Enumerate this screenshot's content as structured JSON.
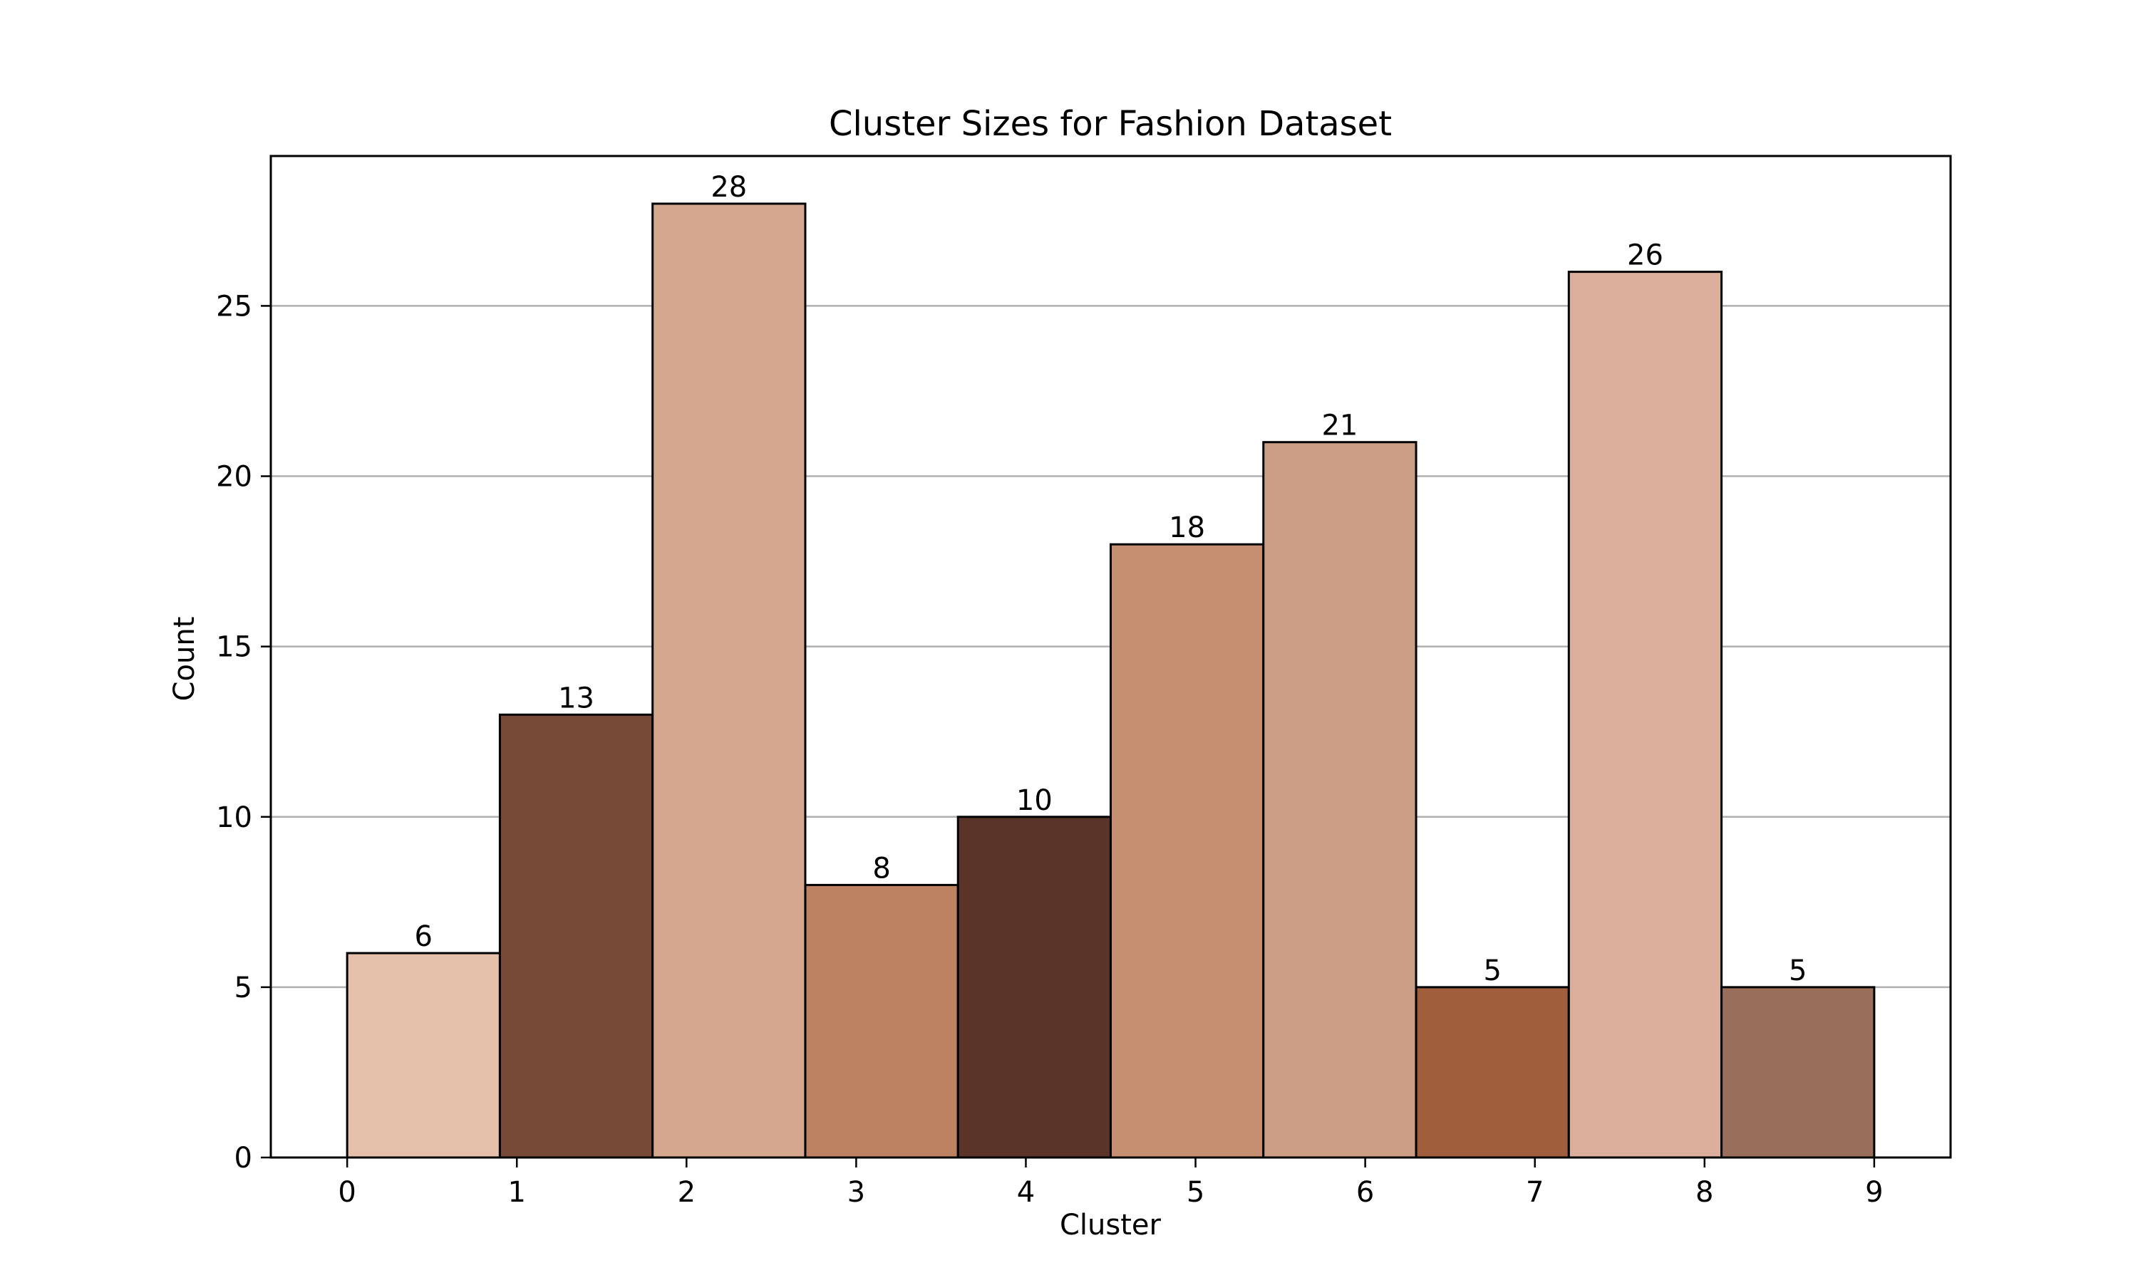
{
  "chart_data": {
    "type": "histogram",
    "title": "Cluster Sizes for Fashion Dataset",
    "xlabel": "Cluster",
    "ylabel": "Count",
    "x_ticks": [
      0,
      1,
      2,
      3,
      4,
      5,
      6,
      7,
      8,
      9
    ],
    "y_ticks": [
      0,
      5,
      10,
      15,
      20,
      25
    ],
    "xlim": [
      -0.45,
      9.45
    ],
    "ylim": [
      0,
      29.4
    ],
    "grid": "horizontal",
    "bins": [
      {
        "start": 0.0,
        "end": 0.9,
        "value": 6,
        "label": "6",
        "color": "#e5c1ab"
      },
      {
        "start": 0.9,
        "end": 1.8,
        "value": 13,
        "label": "13",
        "color": "#774a38"
      },
      {
        "start": 1.8,
        "end": 2.7,
        "value": 28,
        "label": "28",
        "color": "#d5a78e"
      },
      {
        "start": 2.7,
        "end": 3.6,
        "value": 8,
        "label": "8",
        "color": "#bc8261"
      },
      {
        "start": 3.6,
        "end": 4.5,
        "value": 10,
        "label": "10",
        "color": "#5b3429"
      },
      {
        "start": 4.5,
        "end": 5.4,
        "value": 18,
        "label": "18",
        "color": "#c78f71"
      },
      {
        "start": 5.4,
        "end": 6.3,
        "value": 21,
        "label": "21",
        "color": "#cb9e85"
      },
      {
        "start": 6.3,
        "end": 7.2,
        "value": 5,
        "label": "5",
        "color": "#a05e3c"
      },
      {
        "start": 7.2,
        "end": 8.1,
        "value": 26,
        "label": "26",
        "color": "#dbaf9b"
      },
      {
        "start": 8.1,
        "end": 9.0,
        "value": 5,
        "label": "5",
        "color": "#996e5a"
      }
    ],
    "colors": {
      "grid": "#b0b0b0",
      "edge": "#000000"
    }
  }
}
